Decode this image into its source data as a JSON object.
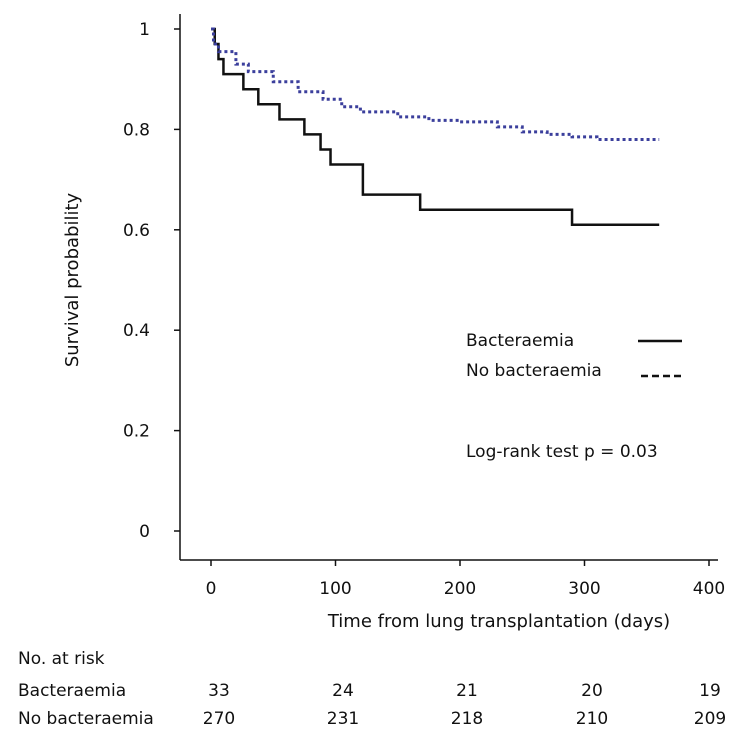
{
  "chart_data": {
    "type": "line",
    "title": "",
    "xlabel": "Time from lung transplantation (days)",
    "ylabel": "Survival probability",
    "xlim": [
      -25,
      410
    ],
    "ylim": [
      -0.05,
      1.02
    ],
    "xticks": [
      0,
      100,
      200,
      300,
      400
    ],
    "xtick_labels": [
      "0",
      "100",
      "200",
      "300",
      "400"
    ],
    "yticks": [
      0,
      0.2,
      0.4,
      0.6,
      0.8,
      1
    ],
    "ytick_labels": [
      "0",
      "0.2",
      "0.4",
      "0.6",
      "0.8",
      "1"
    ],
    "grid": false,
    "legend_position": "right",
    "series": [
      {
        "name": "Bacteraemia",
        "style": "solid",
        "color": "#111111",
        "step_points": [
          [
            0,
            1.0
          ],
          [
            3,
            0.97
          ],
          [
            6,
            0.94
          ],
          [
            10,
            0.91
          ],
          [
            26,
            0.88
          ],
          [
            38,
            0.85
          ],
          [
            55,
            0.82
          ],
          [
            75,
            0.79
          ],
          [
            88,
            0.76
          ],
          [
            96,
            0.73
          ],
          [
            122,
            0.67
          ],
          [
            168,
            0.64
          ],
          [
            290,
            0.61
          ],
          [
            360,
            0.61
          ]
        ]
      },
      {
        "name": "No bacteraemia",
        "style": "dotted",
        "color": "#3b3f9c",
        "step_points": [
          [
            0,
            1.0
          ],
          [
            2,
            0.97
          ],
          [
            6,
            0.955
          ],
          [
            20,
            0.93
          ],
          [
            30,
            0.915
          ],
          [
            50,
            0.895
          ],
          [
            70,
            0.875
          ],
          [
            90,
            0.86
          ],
          [
            105,
            0.845
          ],
          [
            120,
            0.835
          ],
          [
            150,
            0.825
          ],
          [
            175,
            0.818
          ],
          [
            200,
            0.815
          ],
          [
            230,
            0.805
          ],
          [
            250,
            0.795
          ],
          [
            270,
            0.79
          ],
          [
            290,
            0.785
          ],
          [
            310,
            0.78
          ],
          [
            360,
            0.78
          ]
        ]
      }
    ],
    "annotations": [
      "Log-rank test p = 0.03"
    ]
  },
  "risk_table": {
    "header": "No. at risk",
    "rows": [
      {
        "label": "Bacteraemia",
        "values": [
          "33",
          "24",
          "21",
          "20",
          "19"
        ]
      },
      {
        "label": "No bacteraemia",
        "values": [
          "270",
          "231",
          "218",
          "210",
          "209"
        ]
      }
    ]
  }
}
